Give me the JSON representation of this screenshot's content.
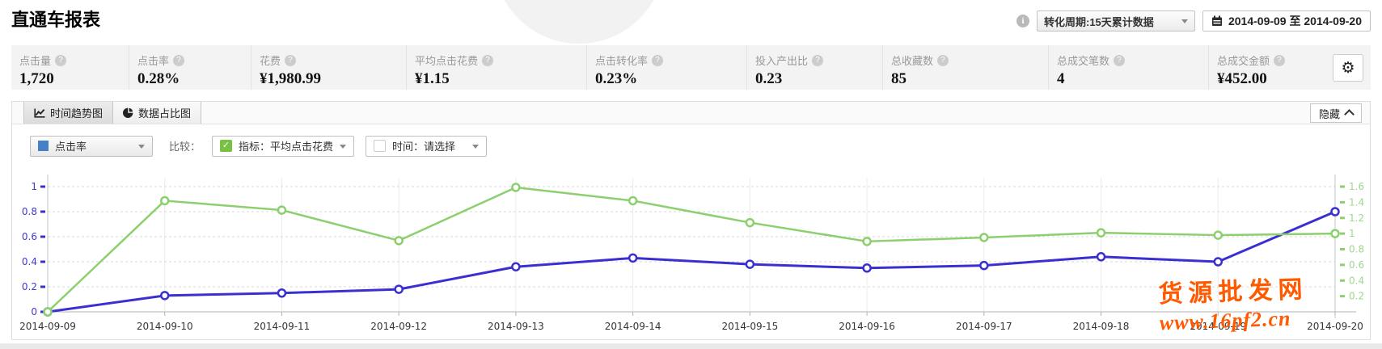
{
  "page": {
    "title": "直通车报表"
  },
  "header": {
    "conversion_dropdown": "转化周期:15天累计数据",
    "date_range": "2014-09-09 至 2014-09-20"
  },
  "stats": {
    "items": [
      {
        "label": "点击量",
        "value": "1,720"
      },
      {
        "label": "点击率",
        "value": "0.28%"
      },
      {
        "label": "花费",
        "value": "¥1,980.99"
      },
      {
        "label": "平均点击花费",
        "value": "¥1.15"
      },
      {
        "label": "点击转化率",
        "value": "0.23%"
      },
      {
        "label": "投入产出比",
        "value": "0.23"
      },
      {
        "label": "总收藏数",
        "value": "85"
      },
      {
        "label": "总成交笔数",
        "value": "4"
      },
      {
        "label": "总成交金额",
        "value": "¥452.00"
      }
    ]
  },
  "panel": {
    "tabs": [
      {
        "label": "时间趋势图",
        "icon": "line-chart-icon",
        "active": true
      },
      {
        "label": "数据占比图",
        "icon": "pie-chart-icon",
        "active": false
      }
    ],
    "hide_button": "隐藏",
    "filters": {
      "metric_select": "点击率",
      "metric_color": "#4780c4",
      "compare_label": "比较：",
      "indicator_select": "指标：平均点击花费",
      "time_select": "时间：请选择"
    }
  },
  "chart_data": {
    "type": "line",
    "categories": [
      "2014-09-09",
      "2014-09-10",
      "2014-09-11",
      "2014-09-12",
      "2014-09-13",
      "2014-09-14",
      "2014-09-15",
      "2014-09-16",
      "2014-09-17",
      "2014-09-18",
      "2014-09-19",
      "2014-09-20"
    ],
    "series": [
      {
        "name": "点击率",
        "axis": "left",
        "color": "#3a2fd1",
        "values": [
          0,
          0.13,
          0.15,
          0.18,
          0.36,
          0.43,
          0.38,
          0.35,
          0.37,
          0.44,
          0.4,
          0.8
        ]
      },
      {
        "name": "平均点击花费",
        "axis": "right",
        "color": "#8ccf6f",
        "values": [
          0,
          1.42,
          1.3,
          0.91,
          1.59,
          1.42,
          1.14,
          0.9,
          0.95,
          1.01,
          0.98,
          1.0
        ]
      }
    ],
    "left_axis": {
      "ticks": [
        0,
        0.2,
        0.4,
        0.6,
        0.8,
        1
      ],
      "range": [
        0,
        1
      ],
      "color": "#3a2fd1",
      "label_color": "#4038d6"
    },
    "right_axis": {
      "ticks": [
        0.2,
        0.4,
        0.6,
        0.8,
        1,
        1.2,
        1.4,
        1.6
      ],
      "range": [
        0,
        1.6
      ],
      "color": "#8ccf6f",
      "label_color": "#9fd78c"
    },
    "grid": true,
    "legend_position": "none"
  },
  "watermark": {
    "line1": "货源批发网",
    "line2": "www.16pf2.cn",
    "color": "#ff5a00"
  }
}
